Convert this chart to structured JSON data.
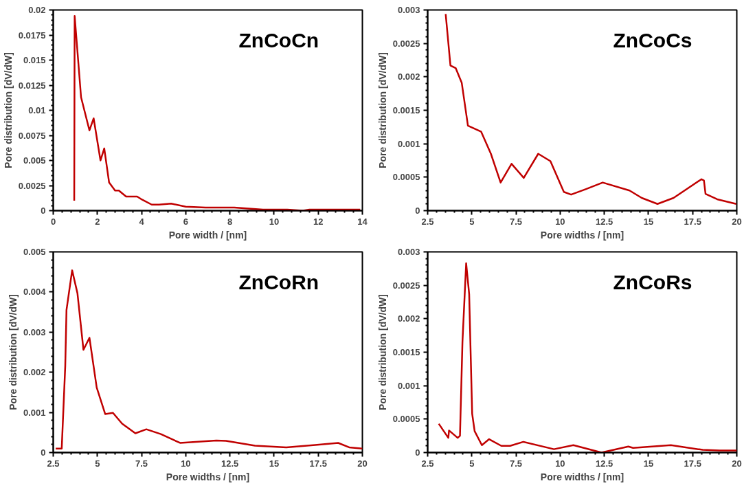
{
  "chart_data": [
    {
      "type": "line",
      "annotations": [
        "ZnCoCn"
      ],
      "xlabel": "Pore width / [nm]",
      "ylabel": "Pore distribution [dV/dW]",
      "xlim": [
        0,
        14
      ],
      "xticks": [
        0,
        2,
        4,
        6,
        8,
        10,
        12,
        14
      ],
      "ylim": [
        0,
        0.02
      ],
      "yticks": [
        0,
        0.0025,
        0.005,
        0.0075,
        0.01,
        0.0125,
        0.015,
        0.0175,
        0.02
      ],
      "grid": false,
      "line_style": "solid",
      "series": [
        {
          "color": "#c00000",
          "x": [
            0.95,
            0.97,
            1.26,
            1.64,
            1.83,
            2.14,
            2.31,
            2.53,
            2.8,
            2.97,
            3.3,
            3.8,
            4.02,
            4.46,
            4.79,
            5.34,
            6.0,
            6.9,
            8.2,
            9.5,
            10.6,
            11.3,
            11.6,
            13.9
          ],
          "values": [
            0.001,
            0.0194,
            0.0113,
            0.008,
            0.0092,
            0.005,
            0.0062,
            0.0028,
            0.002,
            0.002,
            0.0014,
            0.0014,
            0.0011,
            0.0006,
            0.0006,
            0.0007,
            0.0004,
            0.0003,
            0.0003,
            0.0001,
            0.0001,
            0.0,
            0.0001,
            0.0001
          ]
        }
      ]
    },
    {
      "type": "line",
      "annotations": [
        "ZnCoCs"
      ],
      "xlabel": "Pore widths / [nm]",
      "ylabel": "Pore distribution [dV/dW]",
      "xlim": [
        2.5,
        20
      ],
      "xticks": [
        2.5,
        5,
        7.5,
        10,
        12.5,
        15,
        17.5,
        20
      ],
      "ylim": [
        0,
        0.003
      ],
      "yticks": [
        0,
        0.0005,
        0.001,
        0.0015,
        0.002,
        0.0025,
        0.003
      ],
      "grid": false,
      "line_style": "solid",
      "series": [
        {
          "color": "#c00000",
          "x": [
            3.52,
            3.79,
            4.09,
            4.43,
            4.78,
            5.53,
            6.08,
            6.63,
            7.25,
            7.94,
            8.76,
            9.45,
            10.21,
            10.62,
            11.44,
            12.41,
            13.93,
            14.62,
            15.51,
            16.42,
            18.0,
            18.14,
            18.23,
            18.89,
            19.97
          ],
          "values": [
            0.00294,
            0.00217,
            0.00213,
            0.00191,
            0.00127,
            0.00118,
            0.00085,
            0.00042,
            0.0007,
            0.00049,
            0.00085,
            0.00074,
            0.00028,
            0.00024,
            0.00032,
            0.00042,
            0.0003,
            0.00019,
            0.0001,
            0.00019,
            0.00047,
            0.00045,
            0.00025,
            0.00017,
            0.0001
          ]
        }
      ]
    },
    {
      "type": "line",
      "annotations": [
        "ZnCoRn"
      ],
      "xlabel": "Pore widths / [nm]",
      "ylabel": "Pore distribution [dV/dW]",
      "xlim": [
        2.5,
        20
      ],
      "xticks": [
        2.5,
        5,
        7.5,
        10,
        12.5,
        15,
        17.5,
        20
      ],
      "ylim": [
        0,
        0.005
      ],
      "yticks": [
        0,
        0.001,
        0.002,
        0.003,
        0.004,
        0.005
      ],
      "grid": false,
      "line_style": "solid",
      "series": [
        {
          "color": "#c00000",
          "x": [
            2.64,
            2.98,
            3.18,
            3.25,
            3.57,
            3.87,
            4.21,
            4.55,
            4.96,
            5.44,
            5.88,
            6.4,
            7.15,
            7.77,
            8.59,
            9.68,
            11.73,
            12.28,
            13.92,
            15.69,
            17.33,
            18.63,
            19.25,
            20.0
          ],
          "values": [
            0.0001,
            0.0001,
            0.00216,
            0.00355,
            0.00454,
            0.00397,
            0.00256,
            0.00286,
            0.00162,
            0.00096,
            0.00099,
            0.00072,
            0.00048,
            0.00058,
            0.00046,
            0.00024,
            0.0003,
            0.00029,
            0.00017,
            0.00013,
            0.00019,
            0.00024,
            0.00013,
            0.0001
          ]
        }
      ]
    },
    {
      "type": "line",
      "annotations": [
        "ZnCoRs"
      ],
      "xlabel": "Pore widths / [nm]",
      "ylabel": "Pore distribution [dV/dW]",
      "xlim": [
        2.5,
        20
      ],
      "xticks": [
        2.5,
        5,
        7.5,
        10,
        12.5,
        15,
        17.5,
        20
      ],
      "ylim": [
        0,
        0.003
      ],
      "yticks": [
        0,
        0.0005,
        0.001,
        0.0015,
        0.002,
        0.0025,
        0.003
      ],
      "grid": false,
      "line_style": "solid",
      "series": [
        {
          "color": "#c00000",
          "x": [
            3.13,
            3.67,
            3.71,
            4.2,
            4.33,
            4.47,
            4.68,
            4.85,
            5.02,
            5.16,
            5.57,
            5.98,
            6.67,
            7.17,
            7.92,
            9.65,
            10.75,
            12.34,
            13.86,
            14.13,
            16.27,
            18.07,
            19.03,
            20.0
          ],
          "values": [
            0.00043,
            0.00022,
            0.00033,
            0.00022,
            0.00025,
            0.00165,
            0.00283,
            0.00237,
            0.00058,
            0.00032,
            0.00011,
            0.0002,
            0.0001,
            0.0001,
            0.00016,
            5e-05,
            0.00011,
            0.0,
            9e-05,
            7e-05,
            0.00011,
            4e-05,
            3e-05,
            3e-05
          ]
        }
      ]
    }
  ]
}
